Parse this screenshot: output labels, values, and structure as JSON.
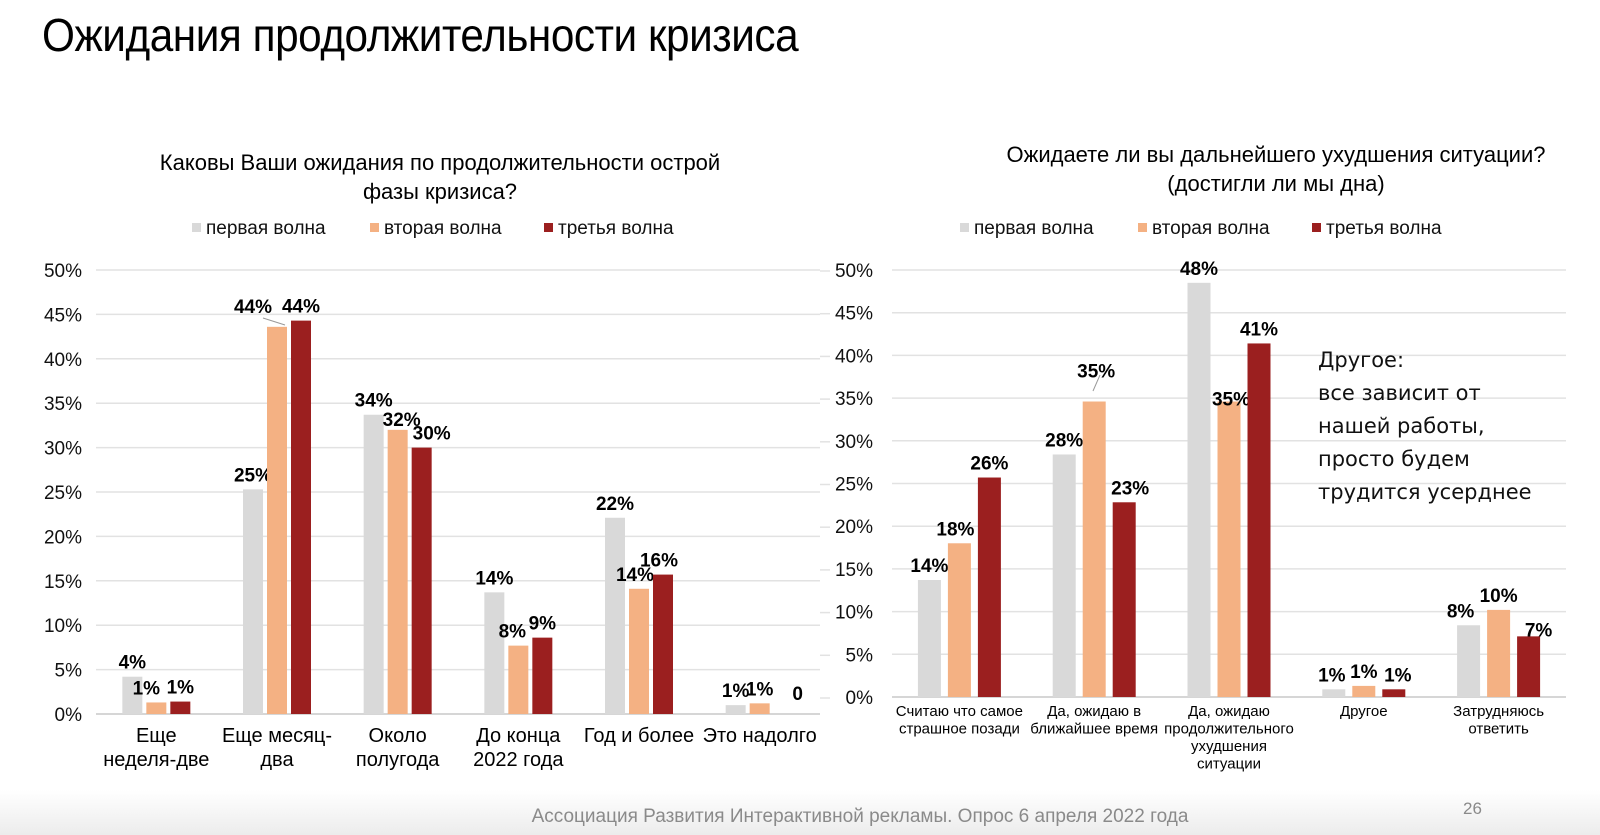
{
  "slide": {
    "title": "Ожидания продолжительности кризиса",
    "footer": "Ассоциация Развития Интерактивной рекламы. Опрос 6 апреля 2022 года",
    "page_number": "26"
  },
  "series_colors": {
    "первая волна": "#d9d9d9",
    "вторая волна": "#f4b183",
    "третья волна": "#9b1f1f"
  },
  "callout": {
    "text": "Другое:\nвсе зависит от\nнашей работы,\nпросто будем\nтрудится усерднее"
  },
  "chart_data": [
    {
      "type": "bar",
      "title": "Каковы Ваши ожидания по продолжительности острой фазы кризиса?",
      "title_lines": [
        "Каковы Ваши ожидания по продолжительности острой",
        "фазы кризиса?"
      ],
      "xlabel": "",
      "ylabel": "",
      "ylim": [
        0,
        0.5
      ],
      "yticks": [
        "0%",
        "5%",
        "10%",
        "15%",
        "20%",
        "25%",
        "30%",
        "35%",
        "40%",
        "45%",
        "50%"
      ],
      "grid": true,
      "legend": "top-center",
      "categories": [
        [
          "Еще",
          "неделя-две"
        ],
        [
          "Еще месяц-",
          "два"
        ],
        [
          "Около",
          "полугода"
        ],
        [
          "До конца",
          "2022 года"
        ],
        [
          "Год и более"
        ],
        [
          "Это надолго"
        ]
      ],
      "series": [
        {
          "name": "первая волна",
          "values": [
            0.042,
            0.253,
            0.337,
            0.137,
            0.221,
            0.01
          ],
          "labels": [
            "4%",
            "25%",
            "34%",
            "14%",
            "22%",
            "1%"
          ]
        },
        {
          "name": "вторая волна",
          "values": [
            0.013,
            0.436,
            0.32,
            0.077,
            0.141,
            0.012
          ],
          "labels": [
            "1%",
            "44%",
            "32%",
            "8%",
            "14%",
            "1%"
          ]
        },
        {
          "name": "третья волна",
          "values": [
            0.014,
            0.443,
            0.3,
            0.086,
            0.157,
            0.0
          ],
          "labels": [
            "1%",
            "44%",
            "30%",
            "9%",
            "16%",
            "0"
          ]
        }
      ]
    },
    {
      "type": "bar",
      "title": "Ожидаете ли вы дальнейшего ухудшения ситуации? (достигли ли мы дна)",
      "title_lines": [
        "Ожидаете ли вы дальнейшего ухудшения ситуации?",
        "(достигли ли мы дна)"
      ],
      "xlabel": "",
      "ylabel": "",
      "ylim": [
        0,
        0.5
      ],
      "yticks": [
        "0%",
        "5%",
        "10%",
        "15%",
        "20%",
        "25%",
        "30%",
        "35%",
        "40%",
        "45%",
        "50%"
      ],
      "grid": true,
      "legend": "top-center",
      "categories": [
        [
          "Считаю что самое",
          "страшное позади"
        ],
        [
          "Да, ожидаю в",
          "ближайшее время"
        ],
        [
          "Да, ожидаю",
          "продолжительного",
          "ухудшения",
          "ситуации"
        ],
        [
          "Другое"
        ],
        [
          "Затрудняюсь",
          "ответить"
        ]
      ],
      "series": [
        {
          "name": "первая волна",
          "values": [
            0.137,
            0.284,
            0.485,
            0.009,
            0.084
          ],
          "labels": [
            "14%",
            "28%",
            "48%",
            "1%",
            "8%"
          ]
        },
        {
          "name": "вторая волна",
          "values": [
            0.18,
            0.346,
            0.346,
            0.013,
            0.102
          ],
          "labels": [
            "18%",
            "35%",
            "35%",
            "1%",
            "10%"
          ]
        },
        {
          "name": "третья волна",
          "values": [
            0.257,
            0.228,
            0.414,
            0.009,
            0.071
          ],
          "labels": [
            "26%",
            "23%",
            "41%",
            "1%",
            "7%"
          ]
        }
      ]
    }
  ]
}
